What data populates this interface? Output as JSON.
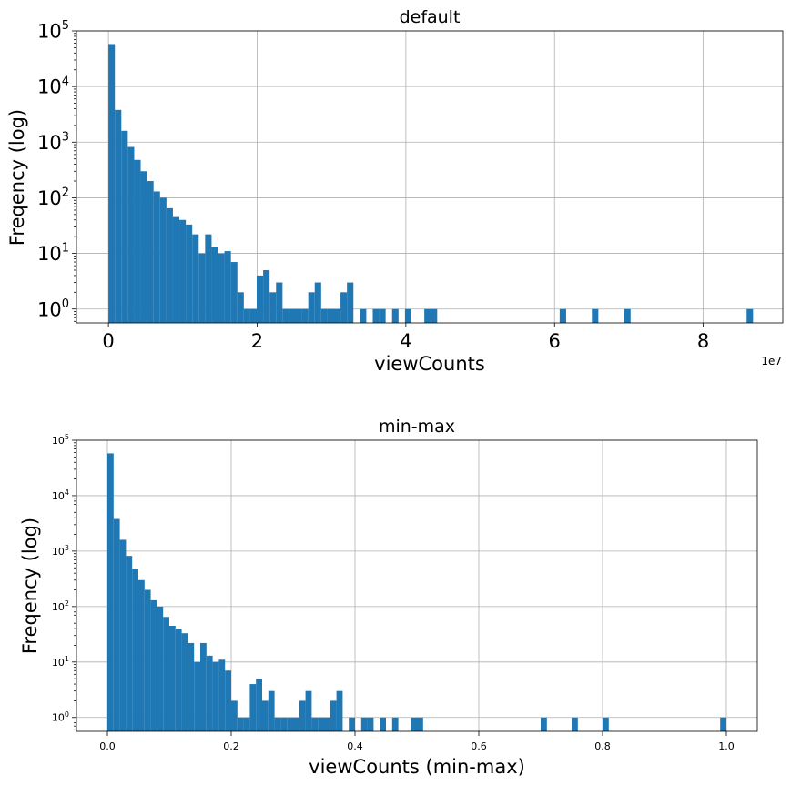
{
  "chart_data": [
    {
      "type": "bar",
      "title": "default",
      "xlabel": "viewCounts",
      "ylabel": "Freqency (log)",
      "x_offset_label": "1e7",
      "xlim": [
        -4.3,
        90.7
      ],
      "ylim_log10": [
        -0.25,
        5
      ],
      "yscale": "log",
      "grid": true,
      "x_tick_values": [
        0,
        20,
        40,
        60,
        80
      ],
      "x_tick_labels": [
        "0",
        "2",
        "4",
        "6",
        "8"
      ],
      "y_tick_exponents": [
        0,
        1,
        2,
        3,
        4,
        5
      ],
      "y_tick_labels": [
        "10^0",
        "10^1",
        "10^2",
        "10^3",
        "10^4",
        "10^5"
      ],
      "bins_min": 0,
      "bins_max": 86.7,
      "bin_count": 100,
      "counts": [
        58000,
        3800,
        1600,
        820,
        480,
        300,
        200,
        130,
        100,
        65,
        45,
        40,
        33,
        22,
        10,
        22,
        13,
        10,
        11,
        7,
        2,
        1,
        1,
        4,
        5,
        2,
        3,
        1,
        1,
        1,
        1,
        2,
        3,
        1,
        1,
        1,
        2,
        3,
        0,
        1,
        0,
        1,
        1,
        0,
        1,
        0,
        1,
        0,
        0,
        1,
        1,
        0,
        0,
        0,
        0,
        0,
        0,
        0,
        0,
        0,
        0,
        0,
        0,
        0,
        0,
        0,
        0,
        0,
        0,
        0,
        1,
        0,
        0,
        0,
        0,
        1,
        0,
        0,
        0,
        0,
        1,
        0,
        0,
        0,
        0,
        0,
        0,
        0,
        0,
        0,
        0,
        0,
        0,
        0,
        0,
        0,
        0,
        0,
        0,
        1
      ],
      "color": "#1f77b4"
    },
    {
      "type": "bar",
      "title": "min-max",
      "xlabel": "viewCounts (min-max)",
      "ylabel": "Freqency (log)",
      "xlim": [
        -0.05,
        1.05
      ],
      "ylim_log10": [
        -0.25,
        5
      ],
      "yscale": "log",
      "grid": true,
      "x_tick_values": [
        0,
        0.2,
        0.4,
        0.6,
        0.8,
        1.0
      ],
      "x_tick_labels": [
        "0.0",
        "0.2",
        "0.4",
        "0.6",
        "0.8",
        "1.0"
      ],
      "y_tick_exponents": [
        0,
        1,
        2,
        3,
        4,
        5
      ],
      "y_tick_labels": [
        "10^0",
        "10^1",
        "10^2",
        "10^3",
        "10^4",
        "10^5"
      ],
      "bins_min": 0,
      "bins_max": 1.0,
      "bin_count": 100,
      "counts": [
        58000,
        3800,
        1600,
        820,
        480,
        300,
        200,
        130,
        100,
        65,
        45,
        40,
        33,
        22,
        10,
        22,
        13,
        10,
        11,
        7,
        2,
        1,
        1,
        4,
        5,
        2,
        3,
        1,
        1,
        1,
        1,
        2,
        3,
        1,
        1,
        1,
        2,
        3,
        0,
        1,
        0,
        1,
        1,
        0,
        1,
        0,
        1,
        0,
        0,
        1,
        1,
        0,
        0,
        0,
        0,
        0,
        0,
        0,
        0,
        0,
        0,
        0,
        0,
        0,
        0,
        0,
        0,
        0,
        0,
        0,
        1,
        0,
        0,
        0,
        0,
        1,
        0,
        0,
        0,
        0,
        1,
        0,
        0,
        0,
        0,
        0,
        0,
        0,
        0,
        0,
        0,
        0,
        0,
        0,
        0,
        0,
        0,
        0,
        0,
        1
      ],
      "color": "#1f77b4"
    }
  ]
}
